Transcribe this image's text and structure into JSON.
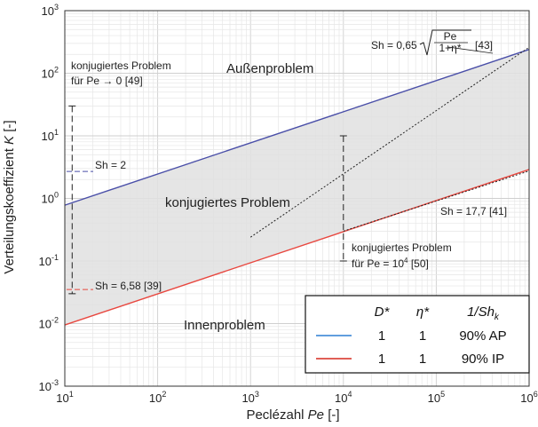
{
  "chart_data": {
    "type": "line",
    "title": "",
    "xlabel": "Peclézahl",
    "xlabel_var": "Pe",
    "xlabel_unit": "[-]",
    "ylabel": "Verteilungskoeffizient",
    "ylabel_var": "K",
    "ylabel_unit": "[-]",
    "xscale": "log",
    "yscale": "log",
    "xlim": [
      10,
      1000000
    ],
    "ylim": [
      0.001,
      1000
    ],
    "grid": true,
    "x_ticks": [
      {
        "base": "10",
        "exp": "1"
      },
      {
        "base": "10",
        "exp": "2"
      },
      {
        "base": "10",
        "exp": "3"
      },
      {
        "base": "10",
        "exp": "4"
      },
      {
        "base": "10",
        "exp": "5"
      },
      {
        "base": "10",
        "exp": "6"
      }
    ],
    "y_ticks": [
      {
        "base": "10",
        "exp": "-3"
      },
      {
        "base": "10",
        "exp": "-2"
      },
      {
        "base": "10",
        "exp": "-1"
      },
      {
        "base": "10",
        "exp": "0"
      },
      {
        "base": "10",
        "exp": "1"
      },
      {
        "base": "10",
        "exp": "2"
      },
      {
        "base": "10",
        "exp": "3"
      }
    ],
    "series": [
      {
        "name": "AP",
        "color": "#4a4fa8",
        "x": [
          10,
          1000000
        ],
        "y": [
          0.78,
          240
        ]
      },
      {
        "name": "IP",
        "color": "#e8473f",
        "x": [
          10,
          1000000
        ],
        "y": [
          0.0095,
          2.9
        ]
      }
    ],
    "reference_lines": [
      {
        "label": "Sh = 0,65 √(Pe/(1+η*)) [43]",
        "x": [
          1000,
          1000000
        ],
        "y": [
          0.24,
          260
        ]
      },
      {
        "label": "Sh = 17,7 [41]",
        "x": [
          10000,
          1000000
        ],
        "y": [
          0.3,
          2.75
        ]
      }
    ],
    "shaded_region": {
      "color": "#e0e0e0",
      "between": [
        "AP",
        "IP"
      ]
    },
    "regions": {
      "outer": "Außenproblem",
      "middle": "konjugiertes Problem",
      "inner": "Innenproblem"
    },
    "annotations": {
      "conj_low_line1": "konjugiertes Problem",
      "conj_low_line2": "für Pe → 0 [49]",
      "conj_high_line1": "konjugiertes Problem",
      "conj_high_line2": "für Pe = 10",
      "conj_high_exp": "4",
      "conj_high_ref": " [50]",
      "sh2": "Sh = 2",
      "sh658": "Sh = 6,58 [39]",
      "sh065_prefix": "Sh = 0,65",
      "sh065_num": "Pe",
      "sh065_den": "1+η*",
      "sh065_ref": "[43]",
      "sh177": "Sh = 17,7 [41]"
    },
    "conj_ranges": [
      {
        "x": 12,
        "y": [
          0.03,
          30
        ]
      },
      {
        "x": 10000,
        "y": [
          0.1,
          10
        ]
      }
    ],
    "legend": {
      "placement": "bottom-right",
      "headers": [
        "D*",
        "η*",
        "1/Sh"
      ],
      "header_sub": "k",
      "rows": [
        {
          "color": "#2d7fd3",
          "d": "1",
          "eta": "1",
          "sh": "90% AP"
        },
        {
          "color": "#d62a1f",
          "d": "1",
          "eta": "1",
          "sh": "90% IP"
        }
      ]
    }
  }
}
